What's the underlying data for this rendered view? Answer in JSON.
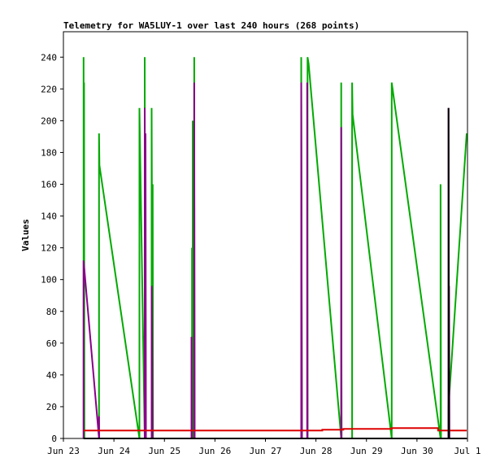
{
  "chart_data": {
    "type": "line",
    "title": "Telemetry for WA5LUY-1 over last 240 hours (268 points)",
    "xlabel": "",
    "ylabel": "Values",
    "x_range": [
      "2025-06-23 00:00",
      "2025-07-01 00:00"
    ],
    "ylim": [
      0,
      256
    ],
    "x_tick_labels": [
      "Jun 23",
      "Jun 24",
      "Jun 25",
      "Jun 26",
      "Jun 27",
      "Jun 28",
      "Jun 29",
      "Jun 30",
      "Jul 1"
    ],
    "y_ticks": [
      0,
      20,
      40,
      60,
      80,
      100,
      120,
      140,
      160,
      180,
      200,
      220,
      240
    ],
    "grid": false,
    "legend": "none",
    "series": [
      {
        "color": "#00aa00",
        "points": [
          [
            "2025-06-23 09:36",
            0
          ],
          [
            "2025-06-23 09:36",
            240
          ],
          [
            "2025-06-23 09:48",
            0
          ],
          [
            "2025-06-23 09:48",
            224
          ],
          [
            "2025-06-23 09:58",
            0
          ],
          [
            "2025-06-23 16:55",
            0
          ],
          [
            "2025-06-23 16:55",
            192
          ],
          [
            "2025-06-23 17:06",
            172
          ],
          [
            "2025-06-24 12:07",
            0
          ],
          [
            "2025-06-24 12:07",
            208
          ],
          [
            "2025-06-24 14:38",
            0
          ],
          [
            "2025-06-24 14:38",
            240
          ],
          [
            "2025-06-24 14:50",
            0
          ],
          [
            "2025-06-24 17:55",
            0
          ],
          [
            "2025-06-24 17:55",
            208
          ],
          [
            "2025-06-24 18:25",
            0
          ],
          [
            "2025-06-24 18:25",
            160
          ],
          [
            "2025-06-24 18:35",
            0
          ],
          [
            "2025-06-25 13:07",
            0
          ],
          [
            "2025-06-25 13:07",
            120
          ],
          [
            "2025-06-25 13:26",
            0
          ],
          [
            "2025-06-25 13:26",
            200
          ],
          [
            "2025-06-25 14:10",
            0
          ],
          [
            "2025-06-25 14:10",
            240
          ],
          [
            "2025-06-25 14:20",
            0
          ],
          [
            "2025-06-27 17:00",
            0
          ],
          [
            "2025-06-27 17:00",
            240
          ],
          [
            "2025-06-27 17:20",
            0
          ],
          [
            "2025-06-27 20:00",
            0
          ],
          [
            "2025-06-27 20:00",
            240
          ],
          [
            "2025-06-27 20:30",
            236
          ],
          [
            "2025-06-28 12:00",
            0
          ],
          [
            "2025-06-28 12:00",
            224
          ],
          [
            "2025-06-28 12:10",
            0
          ],
          [
            "2025-06-28 17:12",
            0
          ],
          [
            "2025-06-28 17:12",
            224
          ],
          [
            "2025-06-28 17:25",
            204
          ],
          [
            "2025-06-29 12:00",
            0
          ],
          [
            "2025-06-29 12:00",
            224
          ],
          [
            "2025-06-30 11:12",
            0
          ],
          [
            "2025-06-30 11:12",
            160
          ],
          [
            "2025-06-30 11:24",
            0
          ],
          [
            "2025-06-30 15:00",
            0
          ],
          [
            "2025-06-30 15:00",
            20
          ],
          [
            "2025-06-30 23:36",
            192
          ]
        ]
      },
      {
        "color": "#880088",
        "points": [
          [
            "2025-06-23 09:36",
            0
          ],
          [
            "2025-06-23 09:36",
            112
          ],
          [
            "2025-06-23 16:55",
            0
          ],
          [
            "2025-06-23 16:55",
            14
          ],
          [
            "2025-06-23 17:00",
            0
          ],
          [
            "2025-06-24 14:38",
            0
          ],
          [
            "2025-06-24 14:38",
            208
          ],
          [
            "2025-06-24 15:00",
            0
          ],
          [
            "2025-06-24 15:00",
            192
          ],
          [
            "2025-06-24 15:12",
            0
          ],
          [
            "2025-06-24 17:55",
            0
          ],
          [
            "2025-06-24 17:55",
            96
          ],
          [
            "2025-06-24 18:10",
            48
          ],
          [
            "2025-06-24 18:20",
            0
          ],
          [
            "2025-06-25 12:50",
            0
          ],
          [
            "2025-06-25 12:50",
            64
          ],
          [
            "2025-06-25 13:00",
            0
          ],
          [
            "2025-06-25 14:10",
            0
          ],
          [
            "2025-06-25 14:10",
            224
          ],
          [
            "2025-06-25 14:20",
            0
          ],
          [
            "2025-06-27 17:00",
            0
          ],
          [
            "2025-06-27 17:00",
            224
          ],
          [
            "2025-06-27 17:20",
            0
          ],
          [
            "2025-06-27 19:50",
            0
          ],
          [
            "2025-06-27 19:50",
            224
          ],
          [
            "2025-06-27 20:00",
            0
          ],
          [
            "2025-06-28 12:00",
            0
          ],
          [
            "2025-06-28 12:00",
            196
          ],
          [
            "2025-06-28 12:10",
            0
          ],
          [
            "2025-06-30 15:00",
            0
          ],
          [
            "2025-06-30 15:00",
            208
          ],
          [
            "2025-06-30 15:15",
            0
          ],
          [
            "2025-06-30 15:15",
            96
          ],
          [
            "2025-06-30 15:25",
            0
          ]
        ]
      },
      {
        "color": "#dd0000",
        "points": [
          [
            "2025-06-23 09:36",
            5
          ],
          [
            "2025-06-28 03:00",
            5
          ],
          [
            "2025-06-28 03:00",
            5.5
          ],
          [
            "2025-06-28 13:00",
            5.5
          ],
          [
            "2025-06-28 13:00",
            6
          ],
          [
            "2025-06-29 12:00",
            6
          ],
          [
            "2025-06-29 12:00",
            6.5
          ],
          [
            "2025-06-30 10:00",
            6.5
          ],
          [
            "2025-06-30 10:00",
            5
          ],
          [
            "2025-06-30 23:36",
            5
          ]
        ]
      },
      {
        "color": "#000000",
        "points": [
          [
            "2025-06-23 09:36",
            0
          ],
          [
            "2025-06-30 23:36",
            0
          ],
          [
            "2025-06-30 15:00",
            0
          ],
          [
            "2025-06-30 15:00",
            208
          ],
          [
            "2025-06-30 15:12",
            0
          ]
        ]
      }
    ]
  }
}
